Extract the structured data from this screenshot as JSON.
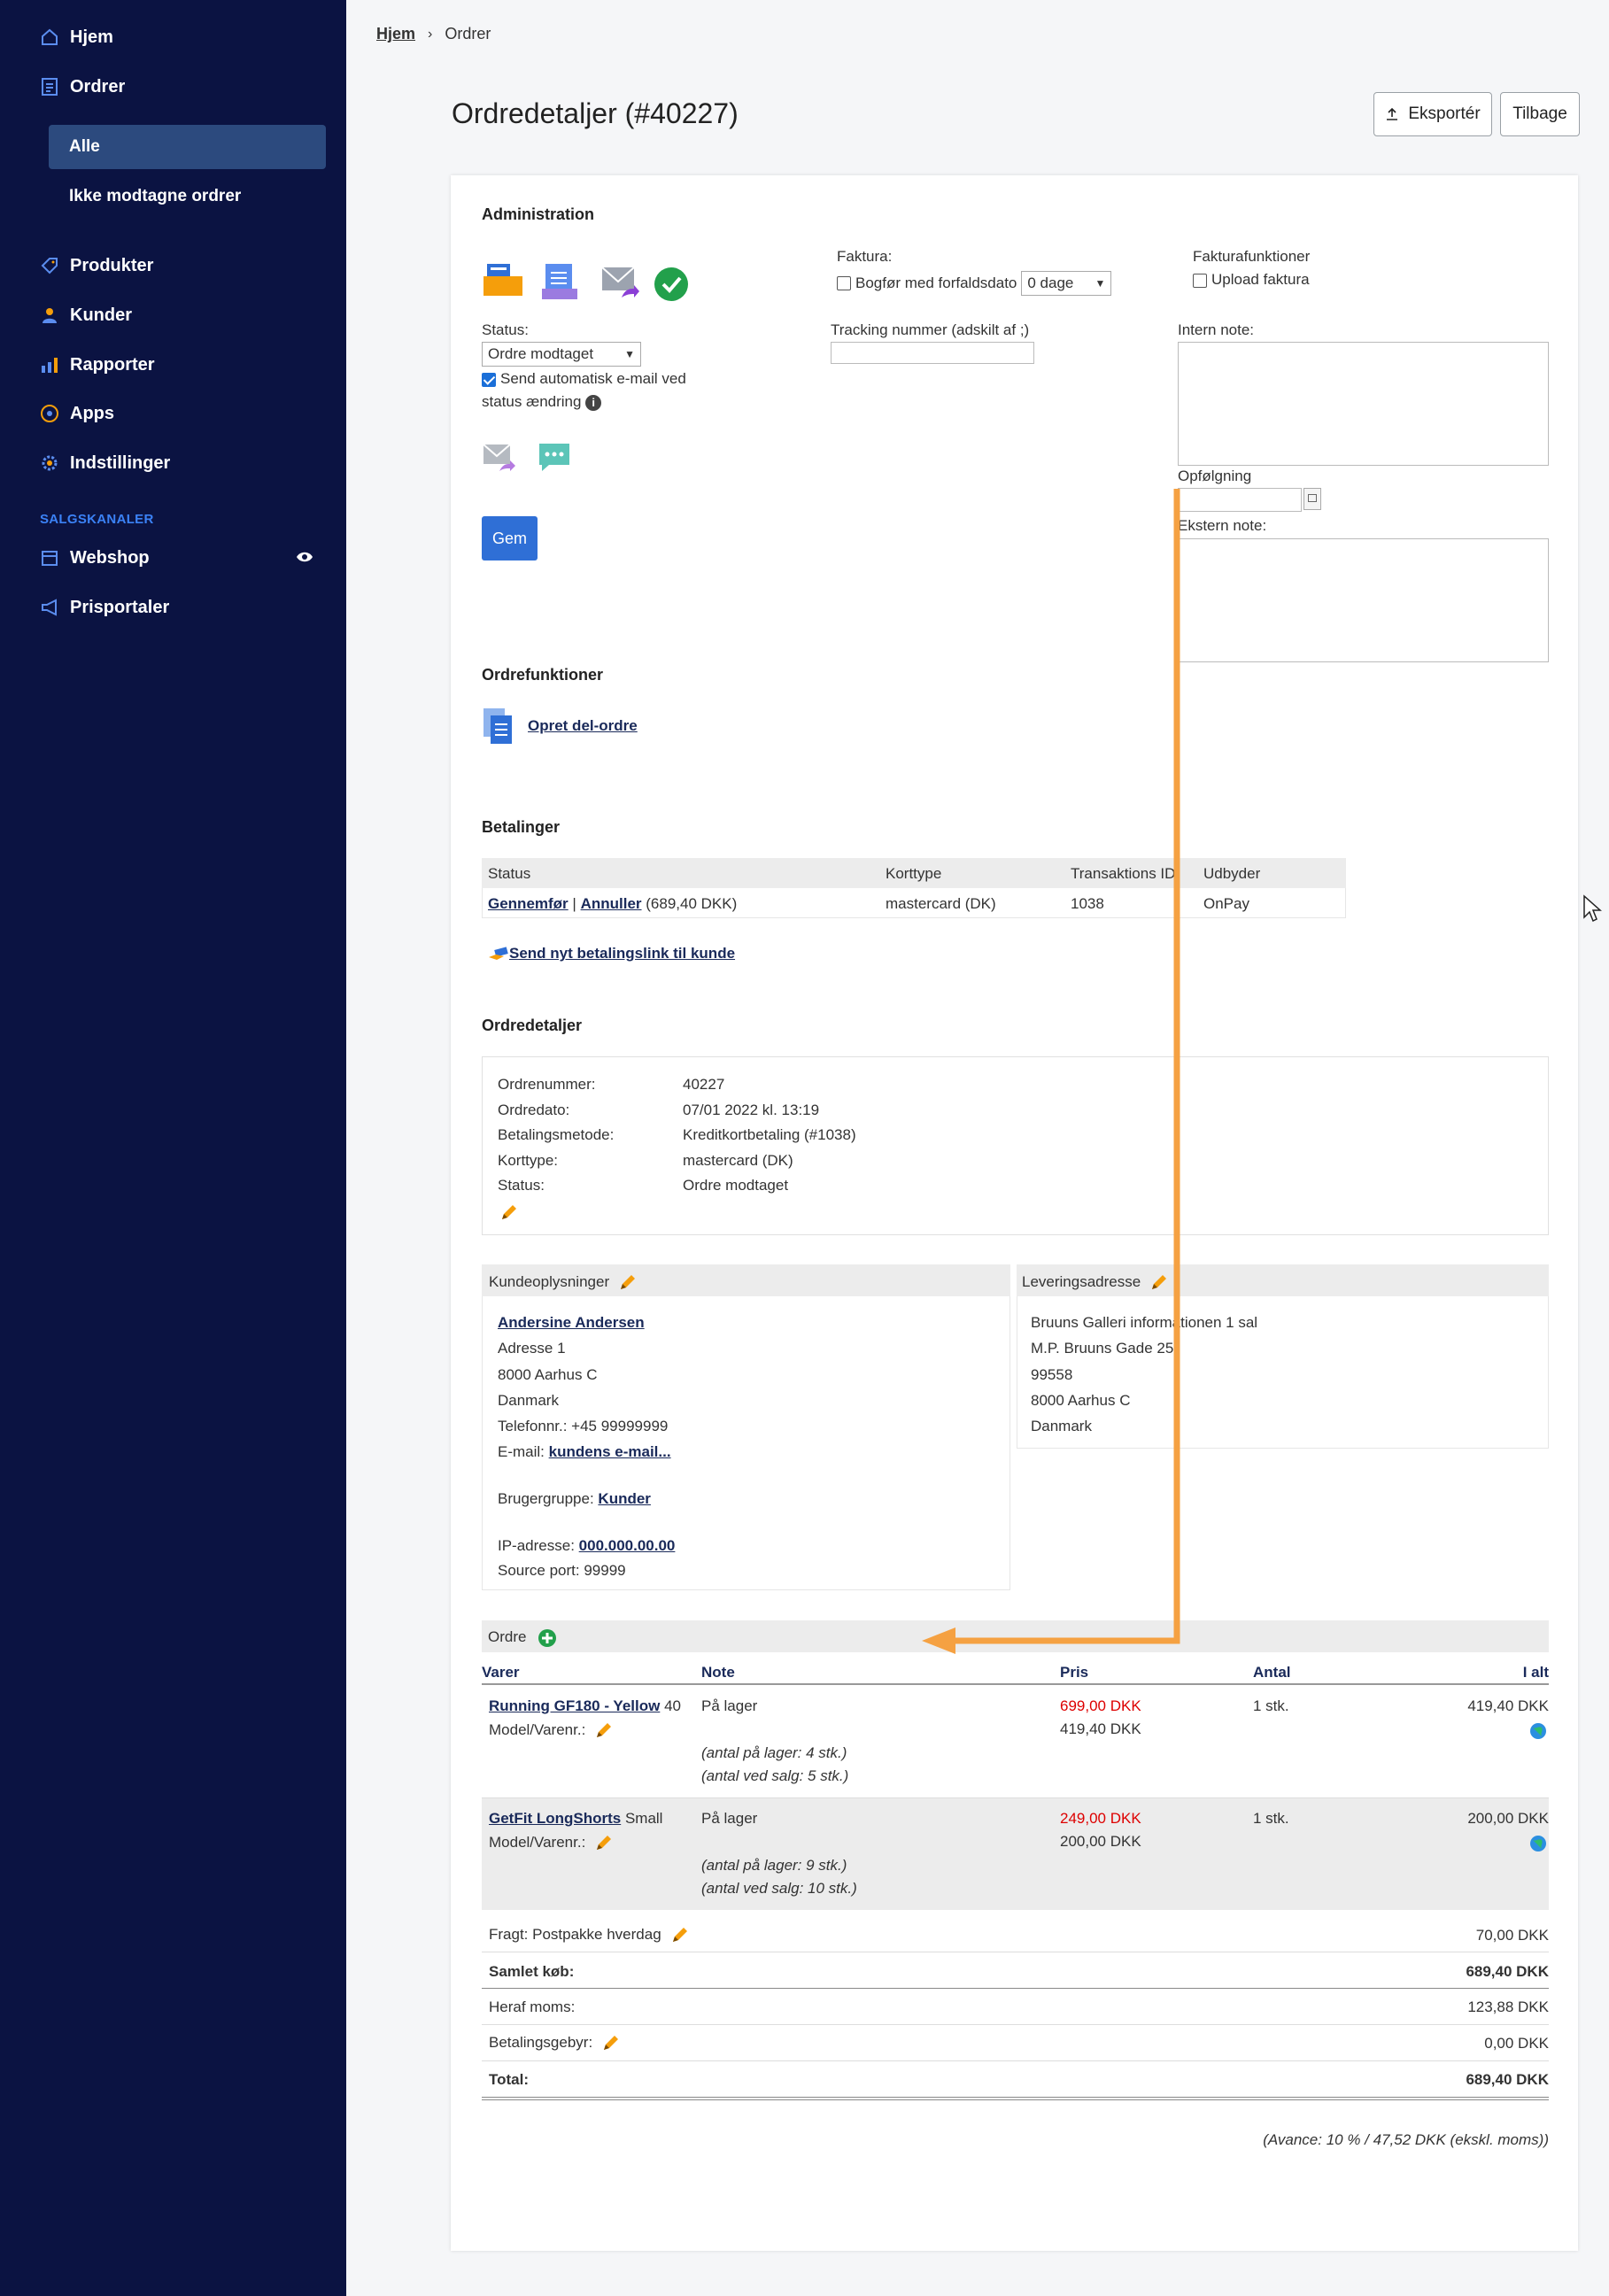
{
  "sidebar": {
    "items": [
      {
        "label": "Hjem"
      },
      {
        "label": "Ordrer"
      },
      {
        "label": "Produkter"
      },
      {
        "label": "Kunder"
      },
      {
        "label": "Rapporter"
      },
      {
        "label": "Apps"
      },
      {
        "label": "Indstillinger"
      }
    ],
    "sub": [
      {
        "label": "Alle"
      },
      {
        "label": "Ikke modtagne ordrer"
      }
    ],
    "section": "SALGSKANALER",
    "channels": [
      {
        "label": "Webshop"
      },
      {
        "label": "Prisportaler"
      }
    ]
  },
  "breadcrumb": {
    "home": "Hjem",
    "current": "Ordrer"
  },
  "page": {
    "title": "Ordredetaljer (#40227)",
    "export": "Eksportér",
    "back": "Tilbage"
  },
  "admin": {
    "title": "Administration",
    "status_label": "Status:",
    "status_value": "Ordre modtaget",
    "auto_email": "Send automatisk e-mail ved",
    "auto_email2": "status ændring",
    "save": "Gem",
    "faktura_label": "Faktura:",
    "bogfor": "Bogfør med forfaldsdato",
    "days": "0 dage",
    "tracking": "Tracking nummer (adskilt af ;)",
    "fakturafunk": "Fakturafunktioner",
    "upload": "Upload faktura",
    "intern": "Intern note:",
    "opfolg": "Opfølgning",
    "ekstern": "Ekstern note:"
  },
  "orderfunc": {
    "title": "Ordrefunktioner",
    "link": "Opret del-ordre"
  },
  "payments": {
    "title": "Betalinger",
    "headers": [
      "Status",
      "Korttype",
      "Transaktions ID",
      "Udbyder"
    ],
    "row": {
      "complete": "Gennemfør",
      "sep": "|",
      "cancel": "Annuller",
      "amount": "(689,40 DKK)",
      "card": "mastercard (DK)",
      "tid": "1038",
      "provider": "OnPay"
    },
    "sendlink": "Send nyt betalingslink til kunde"
  },
  "details": {
    "title": "Ordredetaljer",
    "rows": [
      {
        "k": "Ordrenummer:",
        "v": "40227"
      },
      {
        "k": "Ordredato:",
        "v": "07/01 2022 kl. 13:19"
      },
      {
        "k": "Betalingsmetode:",
        "v": "Kreditkortbetaling (#1038)"
      },
      {
        "k": "Korttype:",
        "v": "mastercard (DK)"
      },
      {
        "k": "Status:",
        "v": "Ordre modtaget"
      }
    ]
  },
  "customer": {
    "title": "Kundeoplysninger",
    "name": "Andersine Andersen",
    "addr1": "Adresse 1",
    "city": "8000 Aarhus C",
    "country": "Danmark",
    "phone": "Telefonnr.: +45 99999999",
    "email_label": "E-mail:",
    "email": "kundens e-mail...",
    "group_label": "Brugergruppe:",
    "group": "Kunder",
    "ip_label": "IP-adresse:",
    "ip": "000.000.00.00",
    "port": "Source port: 99999"
  },
  "delivery": {
    "title": "Leveringsadresse",
    "lines": [
      "Bruuns Galleri informationen 1 sal",
      "M.P. Bruuns Gade 25",
      "99558",
      "8000 Aarhus C",
      "Danmark"
    ]
  },
  "order": {
    "title": "Ordre",
    "headers": [
      "Varer",
      "Note",
      "Pris",
      "Antal",
      "I alt"
    ],
    "items": [
      {
        "name": "Running GF180 - Yellow",
        "variant": "40",
        "model": "Model/Varenr.:",
        "note": "På lager",
        "stock": "(antal på lager: 4 stk.)",
        "sale": "(antal ved salg: 5 stk.)",
        "price_old": "699,00 DKK",
        "price": "419,40 DKK",
        "qty": "1 stk.",
        "total": "419,40 DKK"
      },
      {
        "name": "GetFit LongShorts",
        "variant": "Small",
        "model": "Model/Varenr.:",
        "note": "På lager",
        "stock": "(antal på lager: 9 stk.)",
        "sale": "(antal ved salg: 10 stk.)",
        "price_old": "249,00 DKK",
        "price": "200,00 DKK",
        "qty": "1 stk.",
        "total": "200,00 DKK"
      }
    ],
    "freight_label": "Fragt: Postpakke hverdag",
    "freight": "70,00 DKK",
    "sum_label": "Samlet køb:",
    "sum": "689,40 DKK",
    "vat_label": "Heraf moms:",
    "vat": "123,88 DKK",
    "fee_label": "Betalingsgebyr:",
    "fee": "0,00 DKK",
    "total_label": "Total:",
    "total": "689,40 DKK",
    "avance": "(Avance: 10 % / 47,52 DKK (ekskl. moms))"
  },
  "colors": {
    "sidebar": "#0b1342",
    "accent": "#2f6fd6",
    "arrow": "#f5a142"
  }
}
